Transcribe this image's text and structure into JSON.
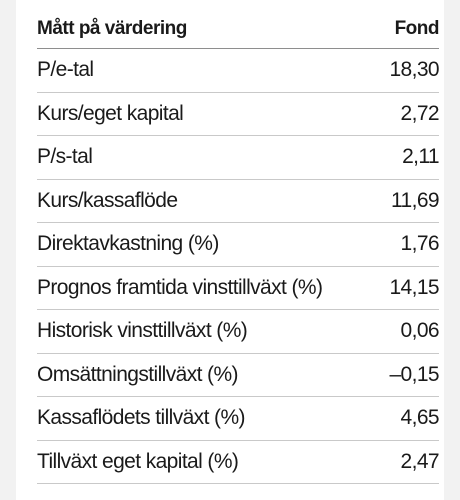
{
  "table": {
    "header": {
      "label": "Mått på värdering",
      "value": "Fond"
    },
    "rows": [
      {
        "label": "P/e-tal",
        "value": "18,30"
      },
      {
        "label": "Kurs/eget kapital",
        "value": "2,72"
      },
      {
        "label": "P/s-tal",
        "value": "2,11"
      },
      {
        "label": "Kurs/kassaflöde",
        "value": "11,69"
      },
      {
        "label": "Direktavkastning (%)",
        "value": "1,76"
      },
      {
        "label": "Prognos framtida vinsttillväxt (%)",
        "value": "14,15"
      },
      {
        "label": "Historisk vinsttillväxt (%)",
        "value": "0,06"
      },
      {
        "label": "Omsättningstillväxt (%)",
        "value": "–0,15"
      },
      {
        "label": "Kassaflödets tillväxt (%)",
        "value": "4,65"
      },
      {
        "label": "Tillväxt eget kapital (%)",
        "value": "2,47"
      }
    ]
  }
}
